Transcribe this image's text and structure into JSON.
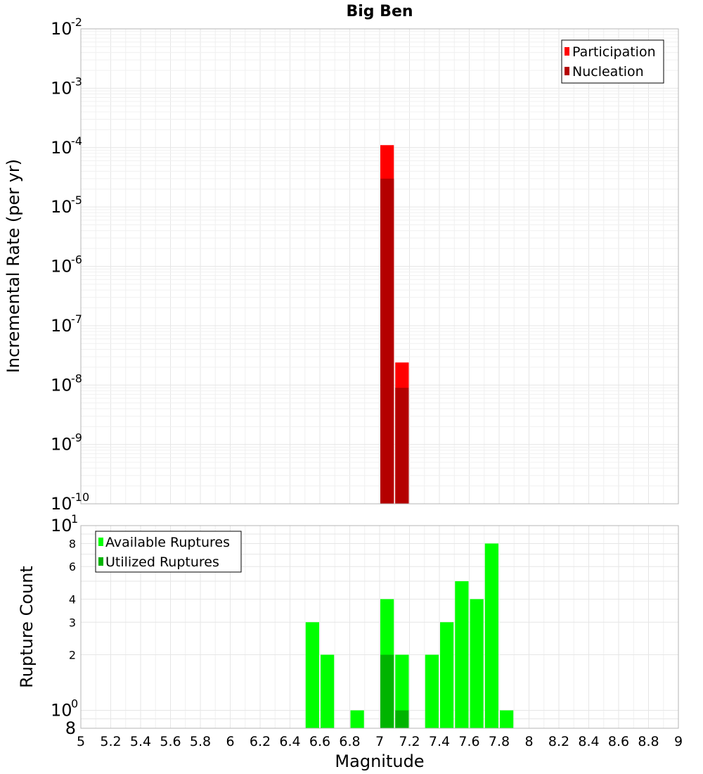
{
  "chart_data": [
    {
      "type": "bar",
      "title": "Big Ben",
      "ylabel": "Incremental Rate (per yr)",
      "xlabel": "",
      "xlim": [
        5,
        9
      ],
      "ylim": [
        1e-10,
        0.01
      ],
      "yscale": "log",
      "legend_position": "top-right",
      "grid": true,
      "bar_width": 0.1,
      "y_tick_exponents": [
        "-10",
        "-9",
        "-8",
        "-7",
        "-6",
        "-5",
        "-4",
        "-3",
        "-2"
      ],
      "y_tick_base": "10",
      "series": [
        {
          "name": "Participation",
          "color": "#ff0000",
          "x": [
            7.05,
            7.15
          ],
          "values": [
            0.00011,
            2.4e-08
          ]
        },
        {
          "name": "Nucleation",
          "color": "#b40000",
          "x": [
            7.05,
            7.15
          ],
          "values": [
            3e-05,
            9e-09
          ]
        }
      ]
    },
    {
      "type": "bar",
      "ylabel": "Rupture Count",
      "xlabel": "Magnitude",
      "xlim": [
        5,
        9
      ],
      "ylim": [
        0.8,
        10
      ],
      "yscale": "log",
      "legend_position": "top-left",
      "grid": true,
      "bar_width": 0.1,
      "x_tick_labels": [
        "5",
        "5.2",
        "5.4",
        "5.6",
        "5.8",
        "6",
        "6.2",
        "6.4",
        "6.6",
        "6.8",
        "7",
        "7.2",
        "7.4",
        "7.6",
        "7.8",
        "8",
        "8.2",
        "8.4",
        "8.6",
        "8.8",
        "9"
      ],
      "y_tick_labels_small": [
        "8",
        "6",
        "4",
        "3",
        "2"
      ],
      "y_tick_base": "10",
      "y_tick_exponents": [
        "0",
        "1"
      ],
      "y_bottom_label": "8",
      "series": [
        {
          "name": "Available Ruptures",
          "color": "#00ff00",
          "x": [
            6.55,
            6.65,
            6.85,
            7.05,
            7.15,
            7.35,
            7.45,
            7.55,
            7.65,
            7.75,
            7.85
          ],
          "values": [
            3,
            2,
            1,
            4,
            2,
            2,
            3,
            5,
            4,
            8,
            1
          ]
        },
        {
          "name": "Utilized Ruptures",
          "color": "#00b400",
          "x": [
            7.05,
            7.15
          ],
          "values": [
            2,
            1
          ]
        }
      ]
    }
  ]
}
